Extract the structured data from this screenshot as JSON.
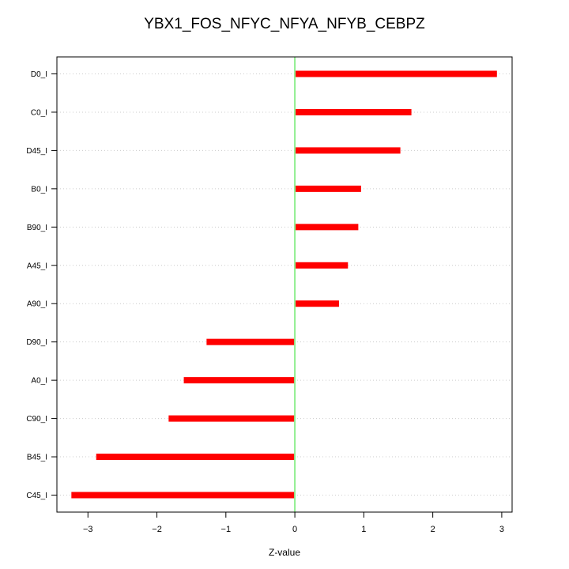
{
  "chart_data": {
    "type": "bar",
    "orientation": "horizontal",
    "title": "YBX1_FOS_NFYC_NFYA_NFYB_CEBPZ",
    "xlabel": "Z-value",
    "ylabel": "",
    "xlim": [
      -3.45,
      3.15
    ],
    "xticks": [
      -3,
      -2,
      -1,
      0,
      1,
      2,
      3
    ],
    "categories": [
      "D0_I",
      "C0_I",
      "D45_I",
      "B0_I",
      "B90_I",
      "A45_I",
      "A90_I",
      "D90_I",
      "A0_I",
      "C90_I",
      "B45_I",
      "C45_I"
    ],
    "values": [
      2.93,
      1.69,
      1.53,
      0.96,
      0.92,
      0.77,
      0.64,
      -1.28,
      -1.61,
      -1.83,
      -2.88,
      -3.24
    ],
    "grid": "horizontal-dotted",
    "reference_line": 0,
    "colors": {
      "bar": "#ff0000",
      "reference_line": "#90ee90",
      "grid": "#cccccc",
      "axis": "#000000"
    }
  }
}
